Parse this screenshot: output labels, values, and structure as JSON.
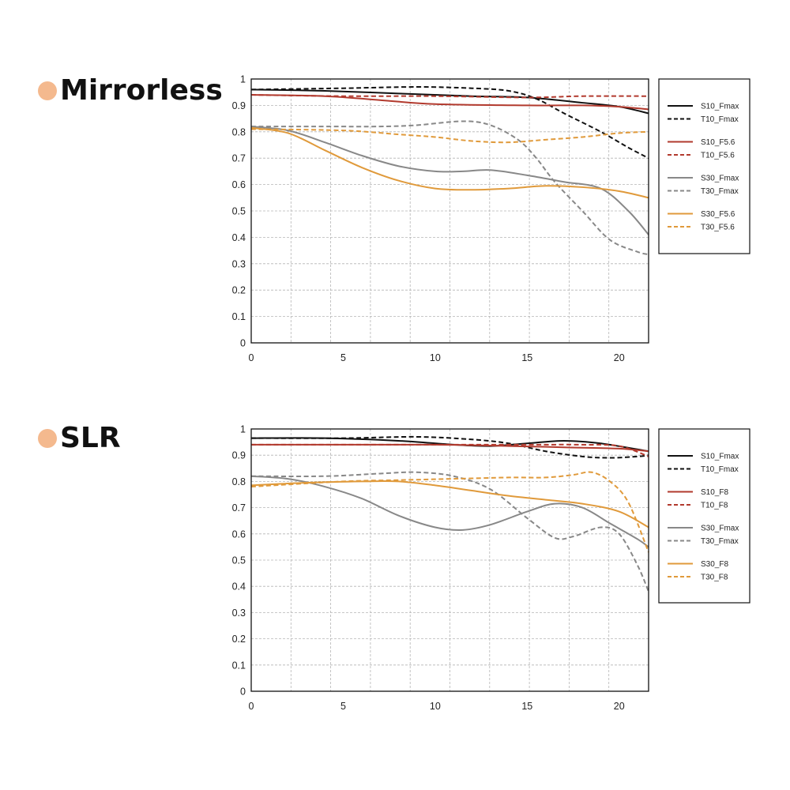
{
  "sections": [
    {
      "title": "Mirrorless"
    },
    {
      "title": "SLR"
    }
  ],
  "chart_data": [
    {
      "type": "line",
      "title": "Mirrorless",
      "xlim": [
        0,
        21.6
      ],
      "ylim": [
        0,
        1
      ],
      "xticks": [
        "0",
        "5",
        "10",
        "15",
        "20"
      ],
      "xtick_values": [
        0,
        5,
        10,
        15,
        20
      ],
      "yticks": [
        "0",
        "0.1",
        "0.2",
        "0.3",
        "0.4",
        "0.5",
        "0.6",
        "0.7",
        "0.8",
        "0.9",
        "1"
      ],
      "ytick_values": [
        0,
        0.1,
        0.2,
        0.3,
        0.4,
        0.5,
        0.6,
        0.7,
        0.8,
        0.9,
        1
      ],
      "grid": true,
      "legend_position": "right",
      "series": [
        {
          "name": "S10_Fmax",
          "color": "#111111",
          "dash": false,
          "points": [
            [
              0,
              0.96
            ],
            [
              4,
              0.955
            ],
            [
              8,
              0.945
            ],
            [
              12,
              0.935
            ],
            [
              15,
              0.93
            ],
            [
              18,
              0.91
            ],
            [
              20,
              0.895
            ],
            [
              21.6,
              0.87
            ]
          ]
        },
        {
          "name": "T10_Fmax",
          "color": "#111111",
          "dash": true,
          "points": [
            [
              0,
              0.96
            ],
            [
              5,
              0.965
            ],
            [
              9,
              0.97
            ],
            [
              12,
              0.965
            ],
            [
              14,
              0.955
            ],
            [
              15.5,
              0.925
            ],
            [
              17,
              0.87
            ],
            [
              19,
              0.8
            ],
            [
              20.5,
              0.74
            ],
            [
              21.6,
              0.7
            ]
          ]
        },
        {
          "name": "S10_F5.6",
          "color": "#b23a2e",
          "dash": false,
          "points": [
            [
              0,
              0.94
            ],
            [
              4,
              0.935
            ],
            [
              7,
              0.92
            ],
            [
              10,
              0.905
            ],
            [
              15,
              0.9
            ],
            [
              18,
              0.9
            ],
            [
              20,
              0.895
            ],
            [
              21.6,
              0.885
            ]
          ]
        },
        {
          "name": "T10_F5.6",
          "color": "#b23a2e",
          "dash": true,
          "points": [
            [
              0,
              0.94
            ],
            [
              5,
              0.935
            ],
            [
              10,
              0.935
            ],
            [
              15,
              0.93
            ],
            [
              18,
              0.935
            ],
            [
              21.6,
              0.935
            ]
          ]
        },
        {
          "name": "S30_Fmax",
          "color": "#888888",
          "dash": false,
          "points": [
            [
              0,
              0.82
            ],
            [
              2,
              0.805
            ],
            [
              4,
              0.76
            ],
            [
              6,
              0.71
            ],
            [
              8,
              0.67
            ],
            [
              10,
              0.65
            ],
            [
              11.5,
              0.65
            ],
            [
              13,
              0.655
            ],
            [
              15,
              0.635
            ],
            [
              17,
              0.61
            ],
            [
              19,
              0.585
            ],
            [
              20.5,
              0.5
            ],
            [
              21.6,
              0.41
            ]
          ]
        },
        {
          "name": "T30_Fmax",
          "color": "#888888",
          "dash": true,
          "points": [
            [
              0,
              0.82
            ],
            [
              4,
              0.82
            ],
            [
              7,
              0.82
            ],
            [
              9,
              0.825
            ],
            [
              11.5,
              0.84
            ],
            [
              13,
              0.825
            ],
            [
              14.5,
              0.77
            ],
            [
              15.5,
              0.7
            ],
            [
              16.5,
              0.61
            ],
            [
              18,
              0.5
            ],
            [
              19.5,
              0.39
            ],
            [
              21,
              0.345
            ],
            [
              21.6,
              0.335
            ]
          ]
        },
        {
          "name": "S30_F5.6",
          "color": "#e09a3b",
          "dash": false,
          "points": [
            [
              0,
              0.815
            ],
            [
              2,
              0.795
            ],
            [
              4,
              0.73
            ],
            [
              6,
              0.665
            ],
            [
              8,
              0.615
            ],
            [
              10,
              0.585
            ],
            [
              12,
              0.58
            ],
            [
              14,
              0.585
            ],
            [
              16,
              0.595
            ],
            [
              18,
              0.59
            ],
            [
              20,
              0.575
            ],
            [
              21.6,
              0.55
            ]
          ]
        },
        {
          "name": "T30_F5.6",
          "color": "#e09a3b",
          "dash": true,
          "points": [
            [
              0,
              0.81
            ],
            [
              5,
              0.805
            ],
            [
              8,
              0.79
            ],
            [
              10,
              0.78
            ],
            [
              12,
              0.765
            ],
            [
              14,
              0.76
            ],
            [
              16,
              0.77
            ],
            [
              18,
              0.78
            ],
            [
              20,
              0.795
            ],
            [
              21.6,
              0.8
            ]
          ]
        }
      ]
    },
    {
      "type": "line",
      "title": "SLR",
      "xlim": [
        0,
        21.6
      ],
      "ylim": [
        0,
        1
      ],
      "xticks": [
        "0",
        "5",
        "10",
        "15",
        "20"
      ],
      "xtick_values": [
        0,
        5,
        10,
        15,
        20
      ],
      "yticks": [
        "0",
        "0.1",
        "0.2",
        "0.3",
        "0.4",
        "0.5",
        "0.6",
        "0.7",
        "0.8",
        "0.9",
        "1"
      ],
      "ytick_values": [
        0,
        0.1,
        0.2,
        0.3,
        0.4,
        0.5,
        0.6,
        0.7,
        0.8,
        0.9,
        1
      ],
      "grid": true,
      "legend_position": "right",
      "series": [
        {
          "name": "S10_Fmax",
          "color": "#111111",
          "dash": false,
          "points": [
            [
              0,
              0.965
            ],
            [
              4,
              0.965
            ],
            [
              8,
              0.955
            ],
            [
              11,
              0.94
            ],
            [
              13,
              0.935
            ],
            [
              15,
              0.945
            ],
            [
              17,
              0.955
            ],
            [
              19,
              0.945
            ],
            [
              21.6,
              0.915
            ]
          ]
        },
        {
          "name": "T10_Fmax",
          "color": "#111111",
          "dash": true,
          "points": [
            [
              0,
              0.965
            ],
            [
              5,
              0.965
            ],
            [
              9,
              0.97
            ],
            [
              12,
              0.96
            ],
            [
              14,
              0.945
            ],
            [
              16,
              0.915
            ],
            [
              18,
              0.895
            ],
            [
              19.5,
              0.89
            ],
            [
              21,
              0.895
            ],
            [
              21.6,
              0.9
            ]
          ]
        },
        {
          "name": "S10_F8",
          "color": "#b23a2e",
          "dash": false,
          "points": [
            [
              0,
              0.94
            ],
            [
              5,
              0.94
            ],
            [
              10,
              0.94
            ],
            [
              14,
              0.935
            ],
            [
              17,
              0.93
            ],
            [
              20,
              0.925
            ],
            [
              21.6,
              0.915
            ]
          ]
        },
        {
          "name": "T10_F8",
          "color": "#b23a2e",
          "dash": true,
          "points": [
            [
              0,
              0.94
            ],
            [
              5,
              0.94
            ],
            [
              10,
              0.94
            ],
            [
              15,
              0.94
            ],
            [
              18,
              0.94
            ],
            [
              20,
              0.935
            ],
            [
              21.6,
              0.895
            ]
          ]
        },
        {
          "name": "S30_Fmax",
          "color": "#888888",
          "dash": false,
          "points": [
            [
              0,
              0.82
            ],
            [
              2,
              0.81
            ],
            [
              4,
              0.78
            ],
            [
              6,
              0.735
            ],
            [
              8,
              0.67
            ],
            [
              10,
              0.625
            ],
            [
              11.5,
              0.615
            ],
            [
              13,
              0.635
            ],
            [
              15,
              0.685
            ],
            [
              16.5,
              0.715
            ],
            [
              18,
              0.7
            ],
            [
              19.5,
              0.64
            ],
            [
              21,
              0.58
            ],
            [
              21.6,
              0.55
            ]
          ]
        },
        {
          "name": "T30_Fmax",
          "color": "#888888",
          "dash": true,
          "points": [
            [
              0,
              0.82
            ],
            [
              4,
              0.82
            ],
            [
              7,
              0.83
            ],
            [
              9,
              0.835
            ],
            [
              11,
              0.82
            ],
            [
              13,
              0.77
            ],
            [
              15,
              0.66
            ],
            [
              16.5,
              0.585
            ],
            [
              17.5,
              0.59
            ],
            [
              19,
              0.625
            ],
            [
              20,
              0.6
            ],
            [
              21,
              0.48
            ],
            [
              21.6,
              0.38
            ]
          ]
        },
        {
          "name": "S30_F8",
          "color": "#e09a3b",
          "dash": false,
          "points": [
            [
              0,
              0.785
            ],
            [
              3,
              0.795
            ],
            [
              6,
              0.8
            ],
            [
              8,
              0.8
            ],
            [
              10,
              0.785
            ],
            [
              12,
              0.765
            ],
            [
              14,
              0.745
            ],
            [
              16,
              0.73
            ],
            [
              18,
              0.715
            ],
            [
              20,
              0.685
            ],
            [
              21.6,
              0.625
            ]
          ]
        },
        {
          "name": "T30_F8",
          "color": "#e09a3b",
          "dash": true,
          "points": [
            [
              0,
              0.78
            ],
            [
              5,
              0.8
            ],
            [
              8,
              0.805
            ],
            [
              11,
              0.81
            ],
            [
              14,
              0.815
            ],
            [
              16,
              0.815
            ],
            [
              17.5,
              0.825
            ],
            [
              18.5,
              0.835
            ],
            [
              19.5,
              0.8
            ],
            [
              20.5,
              0.72
            ],
            [
              21.6,
              0.53
            ]
          ]
        }
      ]
    }
  ]
}
